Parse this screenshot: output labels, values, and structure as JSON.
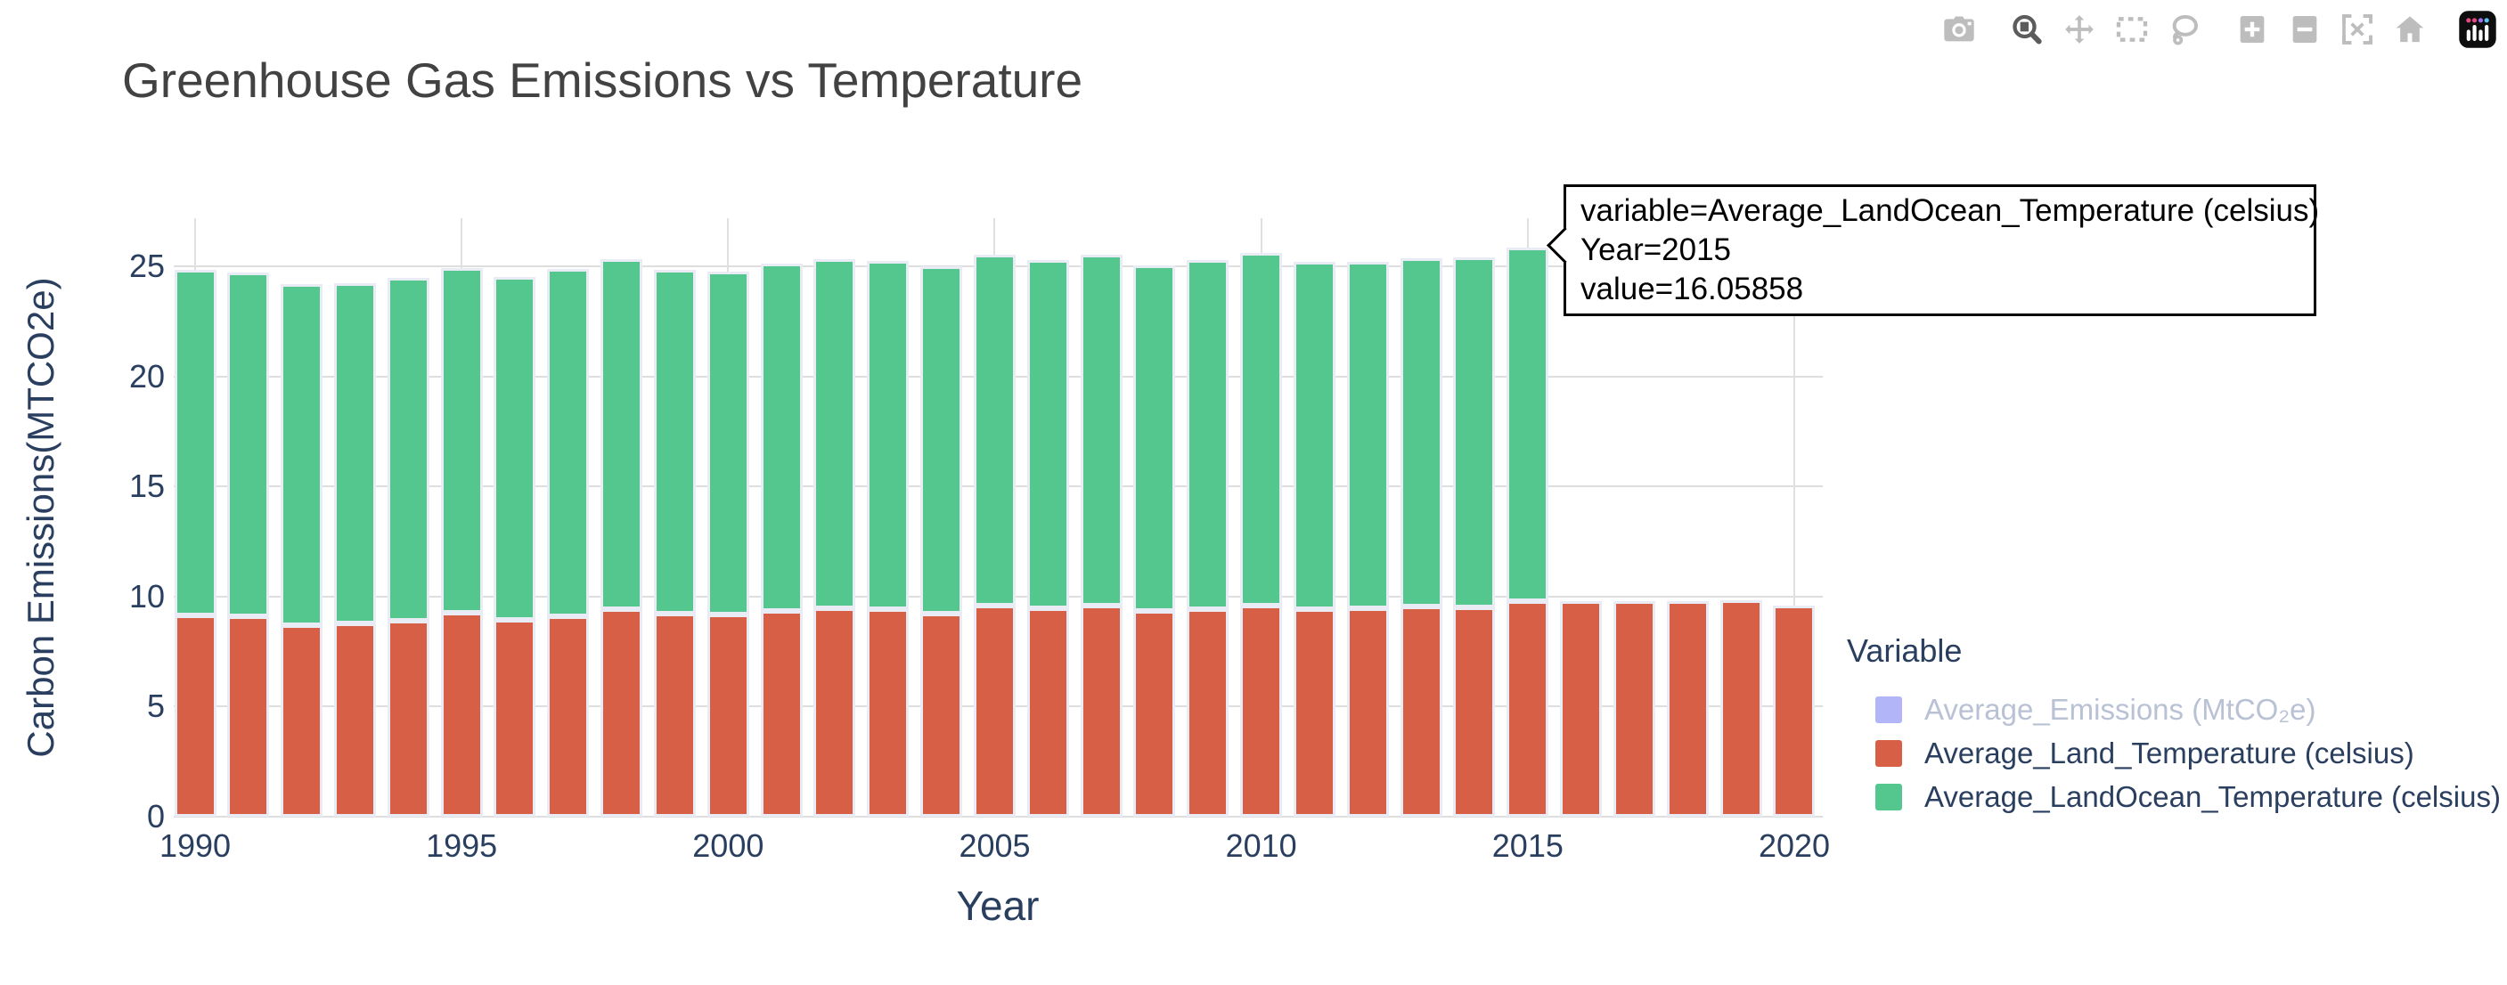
{
  "title": "Greenhouse Gas Emissions vs Temperature",
  "colors": {
    "land_temperature": "#d75f45",
    "landocean_temperature": "#53c78d",
    "emissions_muted": "#b2b5f7",
    "text_navy": "#2a3f5f",
    "muted_text": "#b9c1d4",
    "gridline": "#dedede",
    "bar_outline": "#e9ecf4",
    "title_gray": "#424242"
  },
  "modebar": {
    "icons": [
      {
        "name": "camera",
        "group_gap": false,
        "active": false
      },
      {
        "name": "zoom",
        "group_gap": true,
        "active": true
      },
      {
        "name": "pan",
        "group_gap": false,
        "active": false
      },
      {
        "name": "box-select",
        "group_gap": false,
        "active": false
      },
      {
        "name": "lasso",
        "group_gap": false,
        "active": false
      },
      {
        "name": "zoom-in",
        "group_gap": true,
        "active": false
      },
      {
        "name": "zoom-out",
        "group_gap": false,
        "active": false
      },
      {
        "name": "autoscale",
        "group_gap": false,
        "active": false
      },
      {
        "name": "reset-home",
        "group_gap": false,
        "active": false
      },
      {
        "name": "plotly-logo",
        "group_gap": true,
        "active": false
      }
    ]
  },
  "tooltip": {
    "lines": [
      "variable=Average_LandOcean_Temperature (celsius)",
      "Year=2015",
      "value=16.05858"
    ]
  },
  "legend": {
    "title": "Variable",
    "items": [
      {
        "label": "Average_Emissions (MtCO₂e)",
        "color": "#b2b5f7",
        "muted": true
      },
      {
        "label": "Average_Land_Temperature (celsius)",
        "color": "#d75f45",
        "muted": false
      },
      {
        "label": "Average_LandOcean_Temperature (celsius)",
        "color": "#53c78d",
        "muted": false
      }
    ]
  },
  "axes": {
    "x": {
      "title": "Year",
      "ticks": [
        "1990",
        "1995",
        "2000",
        "2005",
        "2010",
        "2015",
        "2020"
      ]
    },
    "y": {
      "title": "Carbon Emissions(MTCO2e)",
      "ticks": [
        "0",
        "5",
        "10",
        "15",
        "20",
        "25"
      ]
    }
  },
  "chart_data": {
    "type": "bar",
    "barmode": "stacked",
    "title": "Greenhouse Gas Emissions vs Temperature",
    "xlabel": "Year",
    "ylabel": "Carbon Emissions(MTCO2e)",
    "xlim": [
      1988.5,
      2021.5
    ],
    "ylim": [
      0,
      27.2
    ],
    "grid": true,
    "legend_position": "right",
    "legend_title": "Variable",
    "x": [
      1990,
      1991,
      1992,
      1993,
      1994,
      1995,
      1996,
      1997,
      1998,
      1999,
      2000,
      2001,
      2002,
      2003,
      2004,
      2005,
      2006,
      2007,
      2008,
      2009,
      2010,
      2011,
      2012,
      2013,
      2014,
      2015,
      2016,
      2017,
      2018,
      2019,
      2020
    ],
    "series": [
      {
        "name": "Average_Emissions (MtCO₂e)",
        "color": "#b2b5f7",
        "visible": false,
        "values": [
          0,
          0,
          0,
          0,
          0,
          0,
          0,
          0,
          0,
          0,
          0,
          0,
          0,
          0,
          0,
          0,
          0,
          0,
          0,
          0,
          0,
          0,
          0,
          0,
          0,
          0,
          0,
          0,
          0,
          0,
          0
        ]
      },
      {
        "name": "Average_Land_Temperature (celsius)",
        "color": "#d75f45",
        "visible": true,
        "values": [
          9.14,
          9.1,
          8.72,
          8.8,
          8.9,
          9.26,
          8.94,
          9.1,
          9.42,
          9.22,
          9.18,
          9.34,
          9.47,
          9.42,
          9.21,
          9.61,
          9.47,
          9.58,
          9.34,
          9.42,
          9.61,
          9.45,
          9.47,
          9.56,
          9.52,
          9.8,
          9.79,
          9.79,
          9.79,
          9.85,
          9.58
        ]
      },
      {
        "name": "Average_LandOcean_Temperature (celsius)",
        "color": "#53c78d",
        "visible": true,
        "values": [
          15.7,
          15.62,
          15.5,
          15.46,
          15.59,
          15.66,
          15.6,
          15.8,
          15.9,
          15.64,
          15.58,
          15.78,
          15.87,
          15.84,
          15.8,
          15.95,
          15.84,
          15.96,
          15.72,
          15.89,
          16.0,
          15.76,
          15.74,
          15.8,
          15.89,
          16.05858,
          0,
          0,
          0,
          0,
          0
        ]
      }
    ],
    "hover": {
      "series": "Average_LandOcean_Temperature (celsius)",
      "x": 2015,
      "value": 16.05858
    }
  }
}
